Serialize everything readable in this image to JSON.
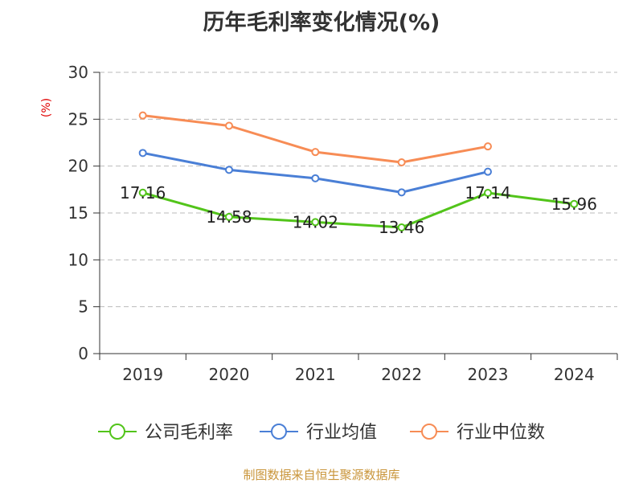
{
  "title": "历年毛利率变化情况(%)",
  "unit_label": "(%)",
  "source": "制图数据来自恒生聚源数据库",
  "chart_data": {
    "type": "line",
    "categories": [
      "2019",
      "2020",
      "2021",
      "2022",
      "2023",
      "2024"
    ],
    "ylim": [
      0,
      30
    ],
    "yticks": [
      0,
      5,
      10,
      15,
      20,
      25,
      30
    ],
    "grid": true,
    "legend_position": "bottom",
    "series": [
      {
        "name": "公司毛利率",
        "color": "#52c41a",
        "values": [
          17.16,
          14.58,
          14.02,
          13.46,
          17.14,
          15.96
        ],
        "show_labels": true
      },
      {
        "name": "行业均值",
        "color": "#4a7fd6",
        "values": [
          21.4,
          19.6,
          18.7,
          17.2,
          19.4,
          null
        ],
        "show_labels": false
      },
      {
        "name": "行业中位数",
        "color": "#f78c55",
        "values": [
          25.4,
          24.3,
          21.5,
          20.4,
          22.1,
          null
        ],
        "show_labels": false
      }
    ],
    "data_labels": [
      "17.16",
      "14.58",
      "14.02",
      "13.46",
      "17.14",
      "15.96"
    ]
  }
}
